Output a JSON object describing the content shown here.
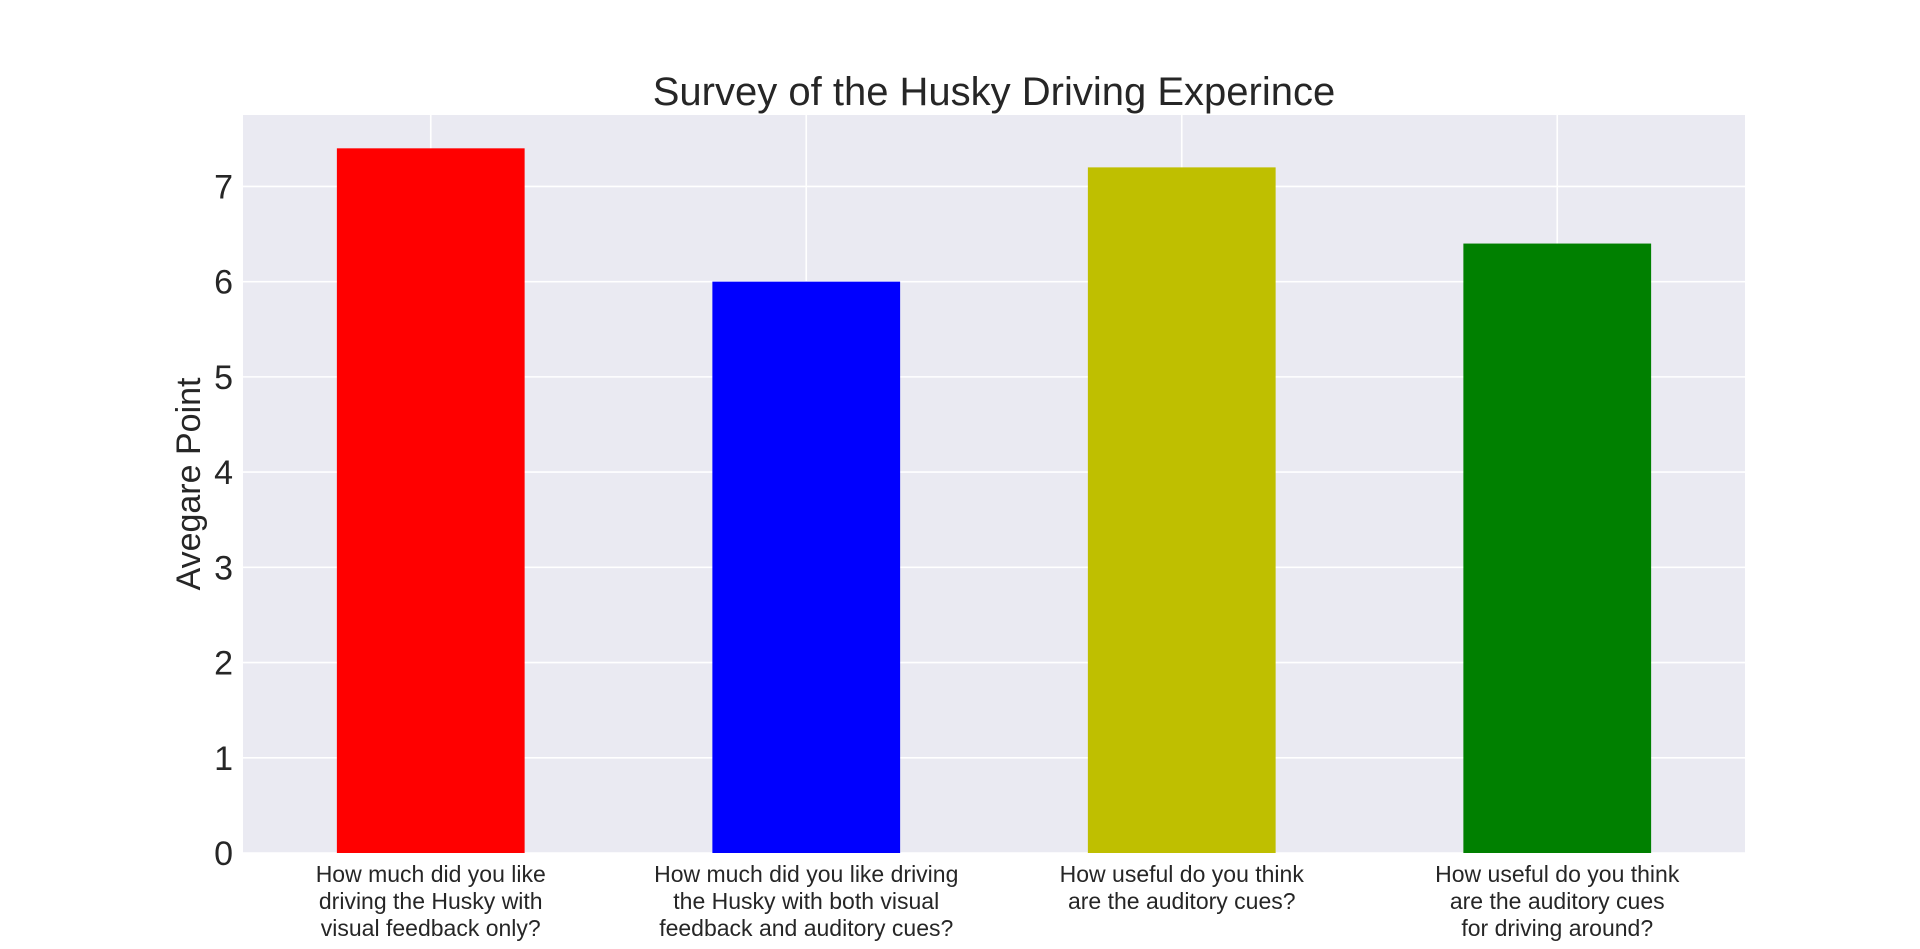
{
  "chart_data": {
    "type": "bar",
    "title": "Survey of the Husky Driving Experince",
    "xlabel": "",
    "ylabel": "Avegare Point",
    "categories": [
      [
        "How much did you like",
        "driving the Husky with",
        "visual feedback only?"
      ],
      [
        "How much did you like driving",
        "the Husky with both visual",
        "feedback and auditory cues?"
      ],
      [
        "How useful do you think",
        "are the auditory cues?"
      ],
      [
        "How useful do you think",
        "are the auditory cues",
        "for driving around?"
      ]
    ],
    "values": [
      7.4,
      6.0,
      7.2,
      6.4
    ],
    "colors": [
      "#ff0000",
      "#0000ff",
      "#bfbf00",
      "#008000"
    ],
    "ylim": [
      0,
      7.75
    ],
    "yticks": [
      0,
      1,
      2,
      3,
      4,
      5,
      6,
      7
    ],
    "grid": true,
    "legend": "none",
    "background_color": "#eaeaf2",
    "grid_color": "#ffffff"
  }
}
